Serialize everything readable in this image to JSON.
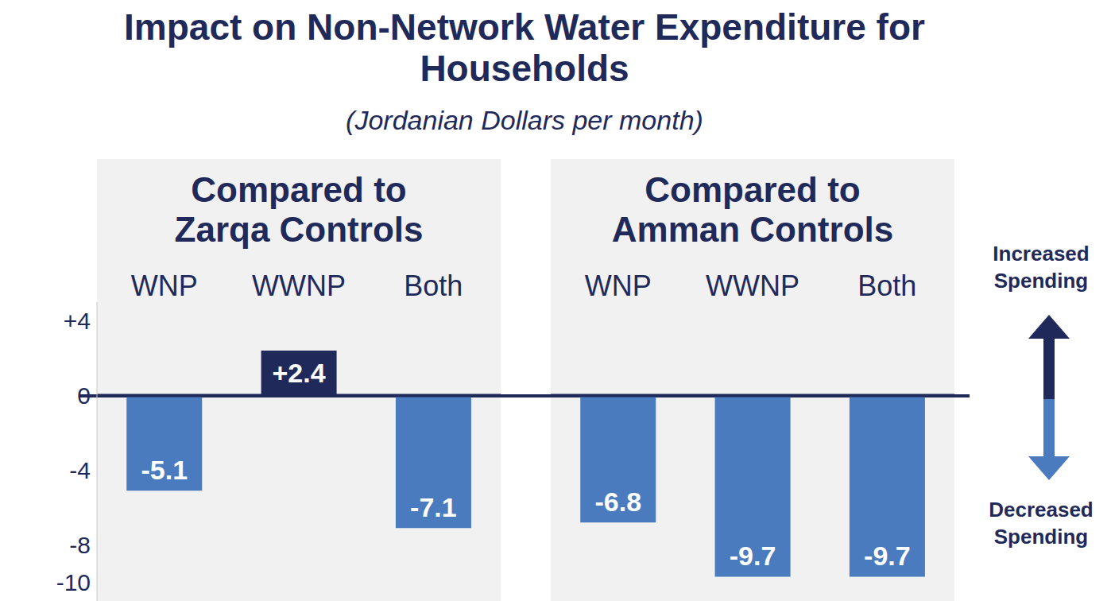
{
  "title": "Impact on Non-Network Water Expenditure for Households",
  "subtitle": "(Jordanian Dollars per month)",
  "annotations": [
    "Increased Spending",
    "Decreased Spending"
  ],
  "chart_data": [
    {
      "type": "bar",
      "title": "Compared to Zarqa Controls",
      "categories": [
        "WNP",
        "WWNP",
        "Both"
      ],
      "values": [
        -5.1,
        2.4,
        -7.1
      ],
      "value_labels": [
        "-5.1",
        "+2.4",
        "-7.1"
      ],
      "data_labels": true,
      "colors": [
        "#4a7bbf",
        "#1f2a5a",
        "#4a7bbf"
      ],
      "ylim": [
        -11,
        5
      ],
      "yticks": [
        {
          "value": 4,
          "label": "+4"
        },
        0,
        -4,
        -8,
        -10
      ]
    },
    {
      "type": "bar",
      "title": "Compared to Amman Controls",
      "categories": [
        "WNP",
        "WWNP",
        "Both"
      ],
      "values": [
        -6.8,
        -9.7,
        -9.7
      ],
      "value_labels": [
        "-6.8",
        "-9.7",
        "-9.7"
      ],
      "data_labels": true,
      "colors": [
        "#4a7bbf",
        "#4a7bbf",
        "#4a7bbf"
      ],
      "ylim": [
        -11,
        5
      ],
      "yticks": [
        {
          "value": 4,
          "label": "+4"
        },
        0,
        -4,
        -8,
        -10
      ],
      "tick_labels": "x"
    }
  ]
}
